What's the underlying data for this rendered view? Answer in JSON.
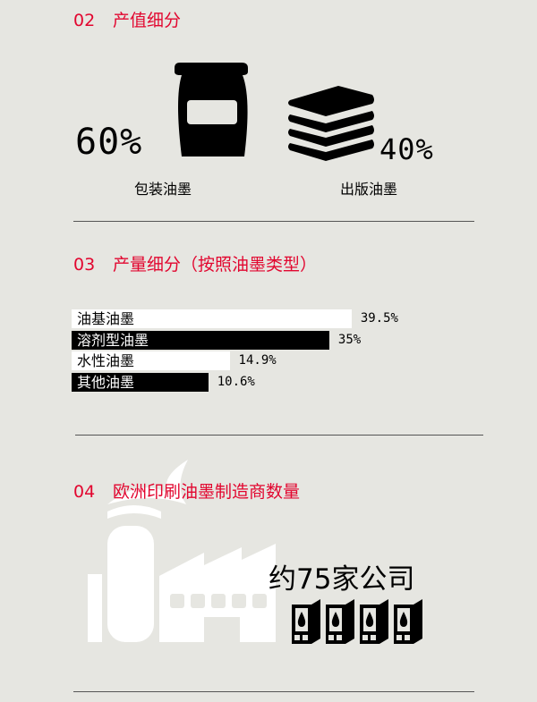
{
  "section02": {
    "num": "02",
    "title": "产值细分",
    "items": [
      {
        "value": "60%",
        "label": "包装油墨",
        "icon": "ink-jar-icon"
      },
      {
        "value": "40%",
        "label": "出版油墨",
        "icon": "paper-stack-icon"
      }
    ]
  },
  "section03": {
    "num": "03",
    "title": "产量细分（按照油墨类型）",
    "chart_data": {
      "type": "bar",
      "orientation": "horizontal",
      "categories": [
        "油基油墨",
        "溶剂型油墨",
        "水性油墨",
        "其他油墨"
      ],
      "values": [
        39.5,
        35,
        14.9,
        10.6
      ],
      "value_labels": [
        "39.5%",
        "35%",
        "14.9%",
        "10.6%"
      ],
      "bar_colors": [
        "#ffffff",
        "#000000",
        "#ffffff",
        "#000000"
      ]
    }
  },
  "section04": {
    "num": "04",
    "title": "欧洲印刷油墨制造商数量",
    "count_text": "约75家公司",
    "icons": [
      "factory-icon",
      "ink-cartridge-icon"
    ]
  },
  "colors": {
    "accent": "#e2062f",
    "background": "#e6e6e1"
  }
}
